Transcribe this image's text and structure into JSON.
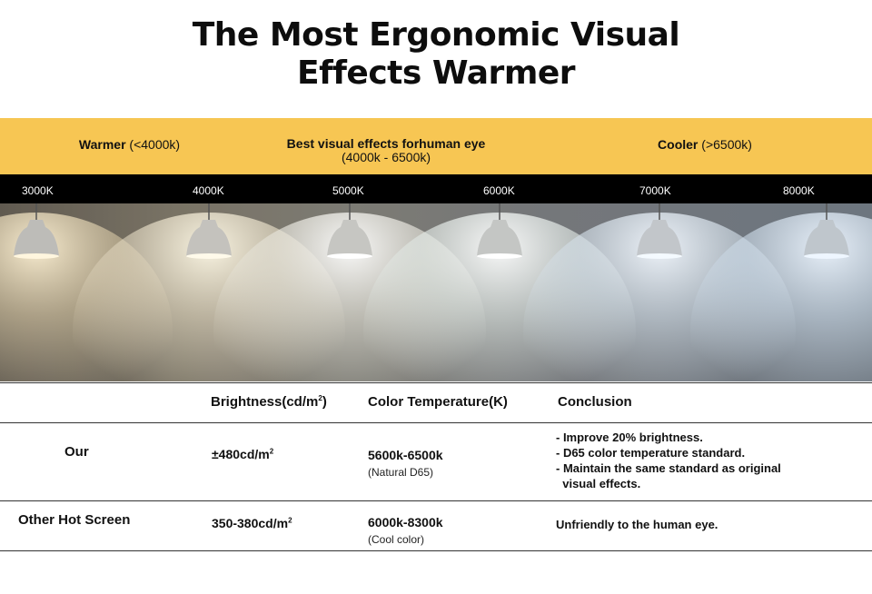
{
  "title_line1": "The Most Ergonomic Visual",
  "title_line2": "Effects Warmer",
  "band": {
    "warm_bold": "Warmer",
    "warm_rest": "(<4000k)",
    "best_bold": "Best visual effects forhuman eye",
    "best_range": "(4000k - 6500k)",
    "cool_bold": "Cooler",
    "cool_rest": "(>6500k)",
    "color": "#f7c653"
  },
  "kelvin_labels": [
    "3000K",
    "4000K",
    "5000K",
    "6000K",
    "7000K",
    "8000K"
  ],
  "table": {
    "headers": {
      "brightness": "Brightness(cd/m",
      "brightness_sup": "2",
      "brightness_close": ")",
      "color_temp": "Color Temperature(K)",
      "conclusion": "Conclusion"
    },
    "rows": [
      {
        "label": "Our",
        "brightness": "±480cd/m",
        "brightness_sup": "2",
        "temp": "5600k-6500k",
        "temp_note": "(Natural D65)",
        "conclusion": [
          "- Improve 20% brightness.",
          "- D65 color temperature standard.",
          "- Maintain the same standard as original",
          "  visual effects."
        ]
      },
      {
        "label": "Other Hot Screen",
        "brightness": "350-380cd/m",
        "brightness_sup": "2",
        "temp": "6000k-8300k",
        "temp_note": "(Cool color)",
        "conclusion": [
          "Unfriendly to the human eye."
        ]
      }
    ]
  }
}
